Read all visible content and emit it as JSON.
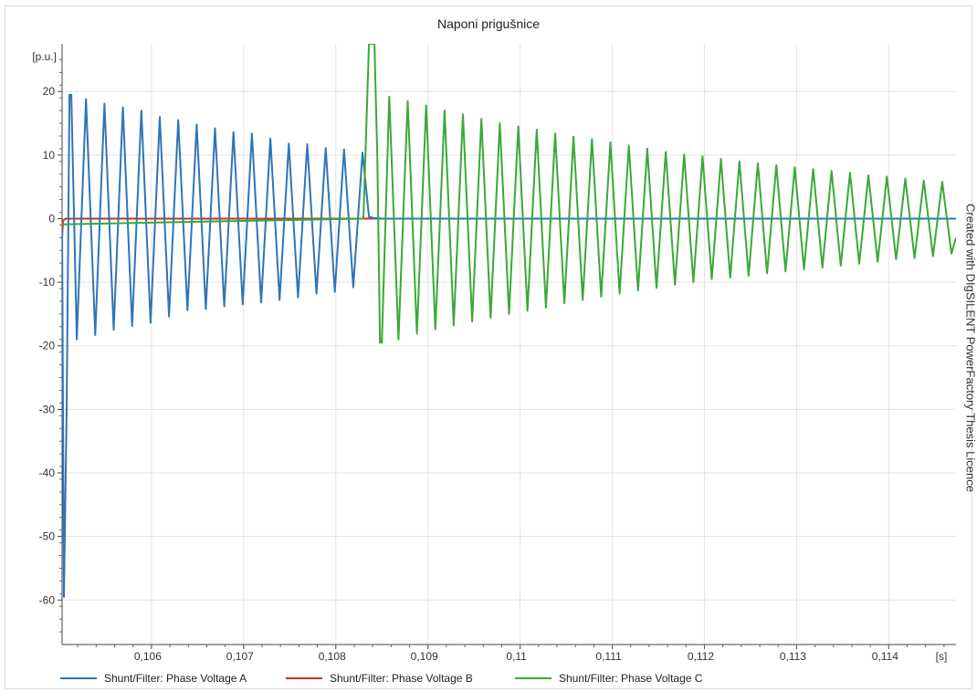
{
  "chart_data": {
    "type": "line",
    "title": "Naponi prigušnice",
    "watermark": "Created with DIgSILENT PowerFactory Thesis Licence",
    "xlabel": "[s]",
    "ylabel": "[p.u.]",
    "xlim": [
      0.10503,
      0.11473
    ],
    "ylim": [
      -67,
      27.5
    ],
    "grid": true,
    "legend_position": "bottom",
    "x_ticks": [
      0.106,
      0.107,
      0.108,
      0.109,
      0.11,
      0.111,
      0.112,
      0.113,
      0.114
    ],
    "x_tick_labels": [
      "0,106",
      "0,107",
      "0,108",
      "0,109",
      "0,11",
      "0,111",
      "0,112",
      "0,113",
      "0,114"
    ],
    "y_ticks": [
      20,
      10,
      0,
      -10,
      -20,
      -30,
      -40,
      -50,
      -60
    ],
    "y_tick_labels": [
      "20",
      "10",
      "0",
      "-10",
      "-20",
      "-30",
      "-40",
      "-50",
      "-60"
    ],
    "series": [
      {
        "name": "Shunt/Filter: Phase Voltage A",
        "color": "#2e75b6",
        "x": [
          0.10503,
          0.10505,
          0.10508,
          0.10511,
          0.10513,
          0.10519,
          0.10529,
          0.10539,
          0.10549,
          0.10559,
          0.10569,
          0.10579,
          0.10589,
          0.10599,
          0.10609,
          0.10619,
          0.10629,
          0.10639,
          0.10649,
          0.10659,
          0.10669,
          0.10679,
          0.10689,
          0.10699,
          0.10709,
          0.10719,
          0.10729,
          0.10739,
          0.10749,
          0.10759,
          0.10769,
          0.10779,
          0.10789,
          0.10799,
          0.10809,
          0.10819,
          0.10829,
          0.10836,
          0.10841,
          0.1085,
          0.11473
        ],
        "y": [
          -1.5,
          -59.5,
          -30,
          19.5,
          19.5,
          -19,
          18.8,
          -18.3,
          18.1,
          -17.5,
          17.5,
          -16.9,
          17.0,
          -16.4,
          16.0,
          -15.4,
          15.5,
          -14.4,
          14.8,
          -14.2,
          14.2,
          -13.8,
          13.6,
          -13.5,
          13.4,
          -13.2,
          12.6,
          -12.8,
          11.8,
          -12.4,
          11.7,
          -11.8,
          11.1,
          -11.5,
          10.9,
          -10.8,
          10.4,
          0.3,
          0.1,
          0.0,
          0.0
        ]
      },
      {
        "name": "Shunt/Filter: Phase Voltage B",
        "color": "#c9302c",
        "x": [
          0.10503,
          0.10504,
          0.10507,
          0.11473
        ],
        "y": [
          -3,
          -0.3,
          0,
          0
        ]
      },
      {
        "name": "Shunt/Filter: Phase Voltage C",
        "color": "#3aa935",
        "x": [
          0.10503,
          0.1083,
          0.10836,
          0.10842,
          0.10845,
          0.10848,
          0.1085,
          0.10858,
          0.10868,
          0.10878,
          0.10888,
          0.10898,
          0.10908,
          0.10918,
          0.10928,
          0.10938,
          0.10948,
          0.10958,
          0.10968,
          0.10978,
          0.10988,
          0.10998,
          0.11008,
          0.11018,
          0.11028,
          0.11038,
          0.11048,
          0.11058,
          0.11068,
          0.11078,
          0.11088,
          0.11098,
          0.11108,
          0.11118,
          0.11128,
          0.11138,
          0.11148,
          0.11158,
          0.11168,
          0.11178,
          0.11188,
          0.11198,
          0.11208,
          0.11218,
          0.11228,
          0.11238,
          0.11248,
          0.11258,
          0.11268,
          0.11278,
          0.11288,
          0.11298,
          0.11308,
          0.11318,
          0.11328,
          0.11338,
          0.11348,
          0.11358,
          0.11368,
          0.11378,
          0.11388,
          0.11398,
          0.11408,
          0.11418,
          0.11428,
          0.11438,
          0.11448,
          0.11458,
          0.11468,
          0.11473
        ],
        "y": [
          -0.9,
          0.0,
          27.5,
          27.5,
          10,
          -19.5,
          -19.5,
          19.2,
          -19.0,
          18.5,
          -18.1,
          17.8,
          -17.4,
          17.0,
          -16.8,
          16.4,
          -16.2,
          15.7,
          -15.6,
          15.0,
          -15.0,
          14.5,
          -14.5,
          14.0,
          -14.0,
          13.4,
          -13.3,
          12.9,
          -12.8,
          12.5,
          -12.3,
          12.0,
          -11.8,
          11.5,
          -11.3,
          11.0,
          -10.9,
          10.5,
          -10.4,
          10.1,
          -10.0,
          9.8,
          -9.5,
          9.4,
          -9.3,
          9.0,
          -9.0,
          8.7,
          -8.6,
          8.4,
          -8.3,
          8.1,
          -8.0,
          7.8,
          -7.7,
          7.5,
          -7.4,
          7.2,
          -7.1,
          6.8,
          -6.8,
          6.6,
          -6.4,
          6.3,
          -6.2,
          6.0,
          -5.9,
          5.8,
          -5.5,
          -3.0
        ]
      }
    ]
  }
}
